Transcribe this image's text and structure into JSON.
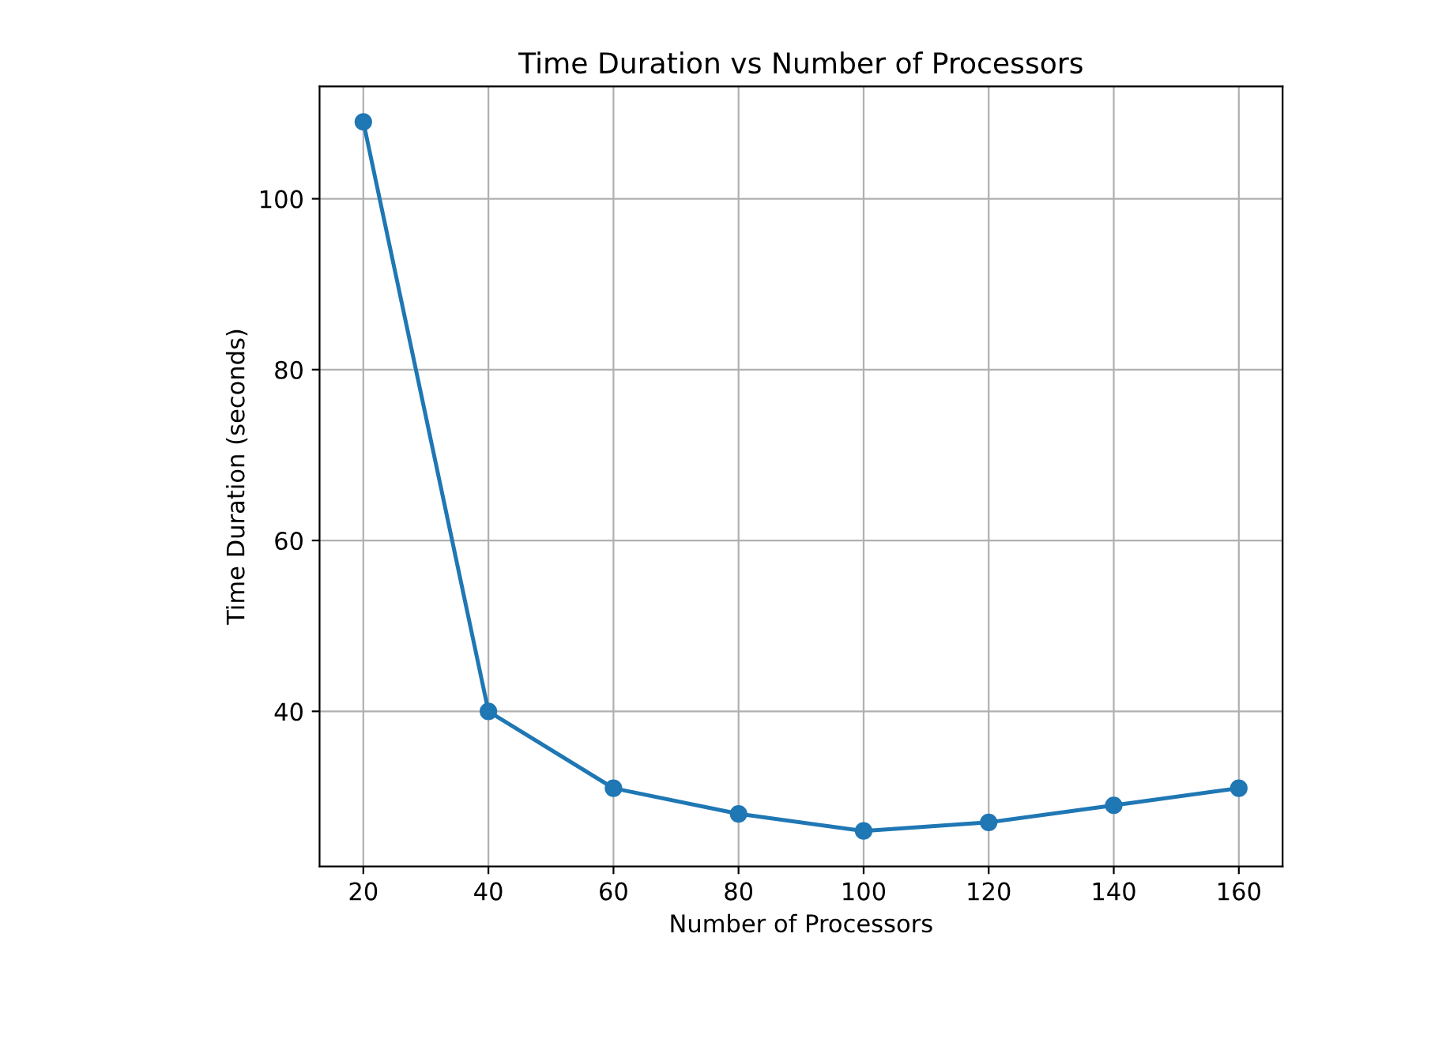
{
  "chart_data": {
    "type": "line",
    "title": "Time Duration vs Number of Processors",
    "xlabel": "Number of Processors",
    "ylabel": "Time Duration (seconds)",
    "x": [
      20,
      40,
      60,
      80,
      100,
      120,
      140,
      160
    ],
    "series": [
      {
        "color": "#1f77b4",
        "values": [
          109,
          40,
          31,
          28,
          26,
          27,
          29,
          31
        ]
      }
    ],
    "xlim": [
      13,
      167
    ],
    "xticks": [
      20,
      40,
      60,
      80,
      100,
      120,
      140,
      160
    ],
    "ylim": [
      21.85,
      113.15
    ],
    "yticks": [
      40,
      60,
      80,
      100
    ],
    "grid": true,
    "marker": "circle",
    "line_style": "solid"
  }
}
